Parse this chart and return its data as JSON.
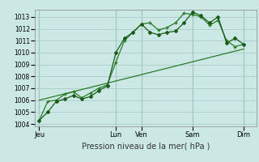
{
  "xlabel": "Pression niveau de la mer( hPa )",
  "bg_color": "#cce8e4",
  "grid_color": "#aaccc8",
  "line_color1": "#1a5c1a",
  "line_color2": "#2a7a2a",
  "line_color3": "#2a7a2a",
  "ylim": [
    1003.8,
    1013.6
  ],
  "yticks": [
    1004,
    1005,
    1006,
    1007,
    1008,
    1009,
    1010,
    1011,
    1012,
    1013
  ],
  "xlim": [
    0,
    26
  ],
  "day_labels": [
    "Jeu",
    "Lun",
    "Ven",
    "Sam",
    "Dim"
  ],
  "day_positions": [
    0.5,
    9.5,
    12.5,
    18.5,
    24.5
  ],
  "vline_positions": [
    0.5,
    9.5,
    12.5,
    18.5,
    24.5
  ],
  "series1_x": [
    0.5,
    1.5,
    2.5,
    3.5,
    4.5,
    5.5,
    6.5,
    7.5,
    8.5,
    9.5,
    10.5,
    11.5,
    12.5,
    13.5,
    14.5,
    15.5,
    16.5,
    17.5,
    18.5,
    19.5,
    20.5,
    21.5,
    22.5,
    23.5,
    24.5
  ],
  "series1_y": [
    1004.3,
    1005.0,
    1005.9,
    1006.1,
    1006.4,
    1006.1,
    1006.3,
    1006.8,
    1007.2,
    1010.0,
    1011.2,
    1011.7,
    1012.4,
    1011.7,
    1011.5,
    1011.7,
    1011.8,
    1012.5,
    1013.4,
    1013.1,
    1012.5,
    1013.0,
    1010.8,
    1011.2,
    1010.7
  ],
  "series2_x": [
    0.5,
    1.5,
    2.5,
    3.5,
    4.5,
    5.5,
    6.5,
    7.5,
    8.5,
    9.5,
    10.5,
    11.5,
    12.5,
    13.5,
    14.5,
    15.5,
    16.5,
    17.5,
    18.5,
    19.5,
    20.5,
    21.5,
    22.5,
    23.5,
    24.5
  ],
  "series2_y": [
    1004.3,
    1005.9,
    1006.0,
    1006.5,
    1006.7,
    1006.2,
    1006.6,
    1007.0,
    1007.3,
    1009.2,
    1011.0,
    1011.7,
    1012.4,
    1012.5,
    1011.9,
    1012.1,
    1012.5,
    1013.3,
    1013.2,
    1013.0,
    1012.3,
    1012.7,
    1011.0,
    1010.5,
    1010.7
  ],
  "series3_x": [
    0.5,
    24.5
  ],
  "series3_y": [
    1006.0,
    1010.3
  ]
}
